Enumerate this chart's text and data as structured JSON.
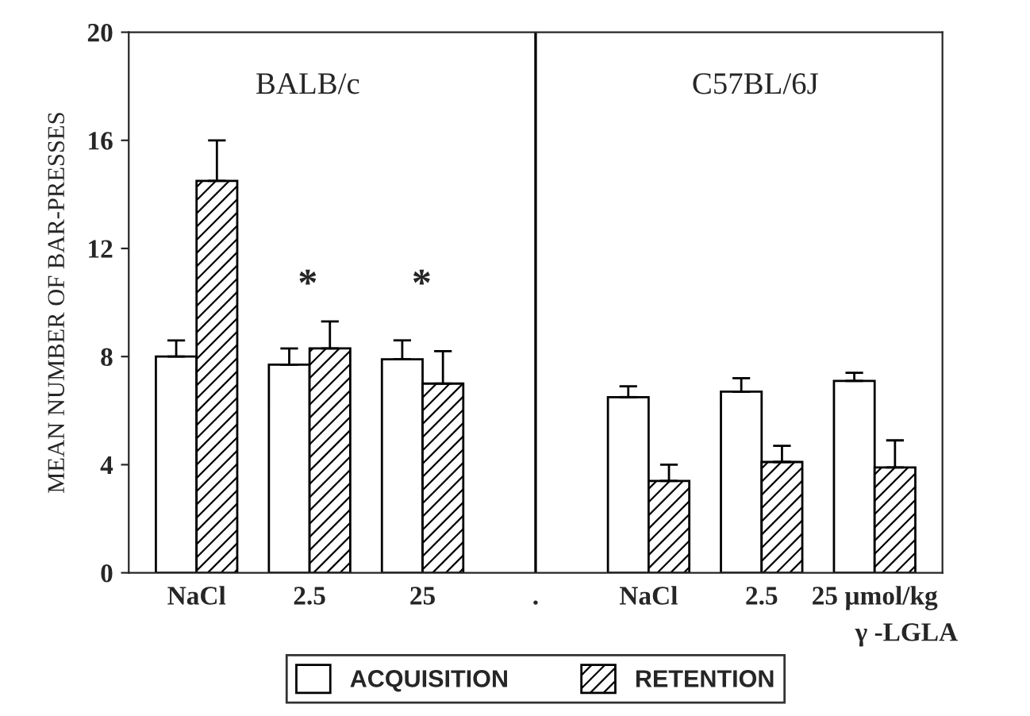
{
  "chart_data": {
    "type": "bar",
    "ylabel": "MEAN NUMBER OF BAR-PRESSES",
    "xlabel": "γ -LGLA",
    "categories": [
      "NaCl",
      "2.5",
      "25",
      ".",
      "NaCl",
      "2.5",
      "25 µmol/kg"
    ],
    "series": [
      {
        "name": "ACQUISITION",
        "color": "#ffffff",
        "values": [
          8.0,
          7.7,
          7.9,
          null,
          6.5,
          6.7,
          7.1
        ],
        "errors": [
          [
            8.0,
            8.6
          ],
          [
            7.7,
            8.3
          ],
          [
            7.9,
            8.6
          ],
          null,
          [
            6.5,
            6.9
          ],
          [
            6.7,
            7.2
          ],
          [
            7.1,
            7.4
          ]
        ]
      },
      {
        "name": "RETENTION",
        "color": "#000000",
        "values": [
          14.5,
          8.3,
          7.0,
          null,
          3.4,
          4.1,
          3.9
        ],
        "errors": [
          [
            14.5,
            16.0
          ],
          [
            8.3,
            9.3
          ],
          [
            7.0,
            8.2
          ],
          null,
          [
            3.4,
            4.0
          ],
          [
            4.1,
            4.7
          ],
          [
            3.9,
            4.9
          ]
        ]
      }
    ],
    "ylim": [
      0,
      20
    ],
    "yticks": [
      0,
      4,
      8,
      12,
      16,
      20
    ],
    "ref_lines": [
      {
        "axis": "x",
        "value": ".",
        "label": null
      }
    ],
    "annotations": [
      "BALB/c",
      "C57BL/6J",
      "*",
      "*"
    ],
    "legend": "bottom",
    "grid": false
  }
}
